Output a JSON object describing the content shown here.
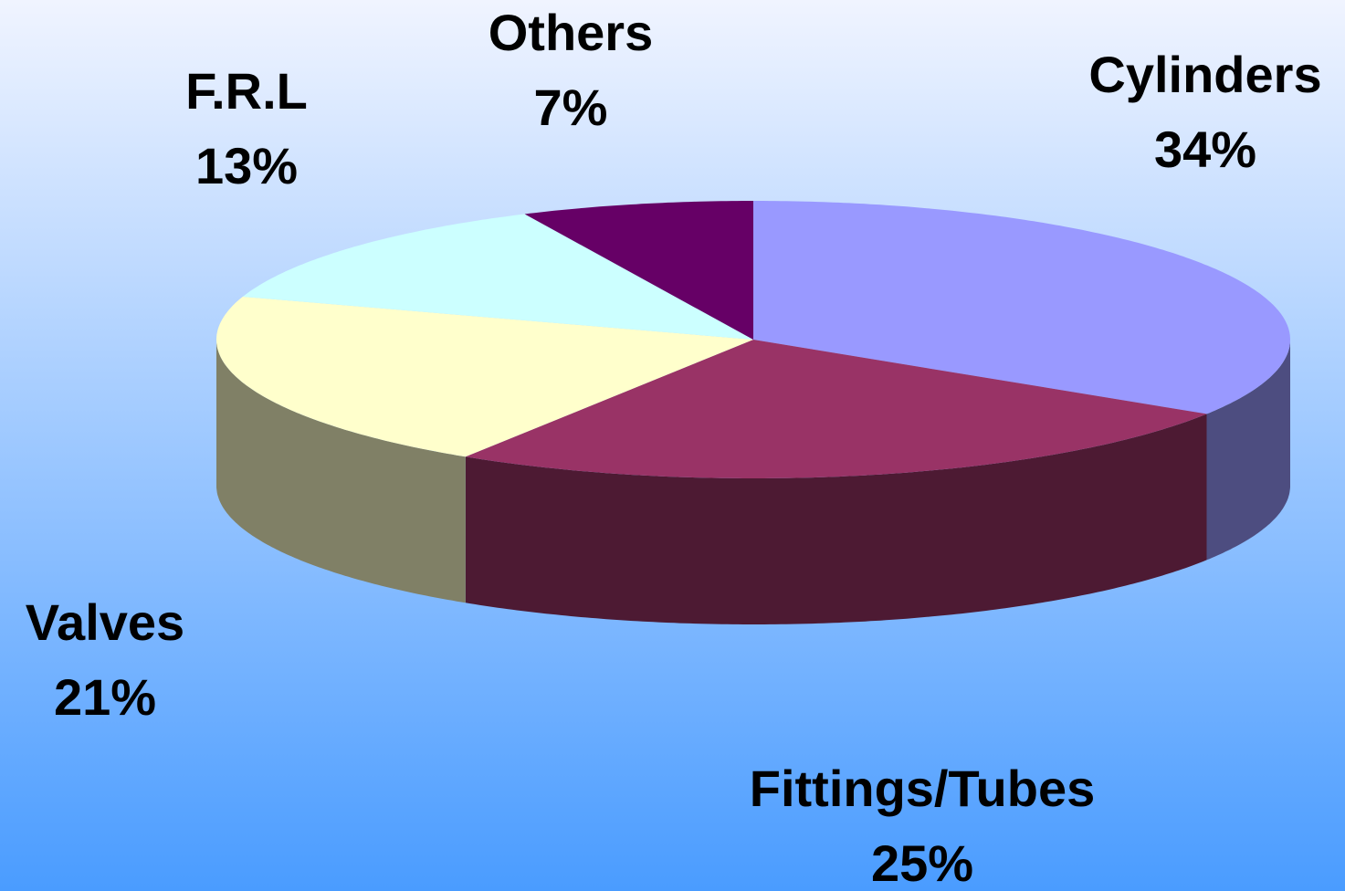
{
  "chart_data": {
    "type": "pie3d",
    "categories": [
      "Cylinders",
      "Fittings/Tubes",
      "Valves",
      "F.R.L",
      "Others"
    ],
    "values": [
      34,
      25,
      21,
      13,
      7
    ],
    "value_labels": [
      "34%",
      "25%",
      "21%",
      "13%",
      "7%"
    ],
    "colors": [
      "#9999ff",
      "#993366",
      "#ffffcc",
      "#ccffff",
      "#660066"
    ]
  }
}
